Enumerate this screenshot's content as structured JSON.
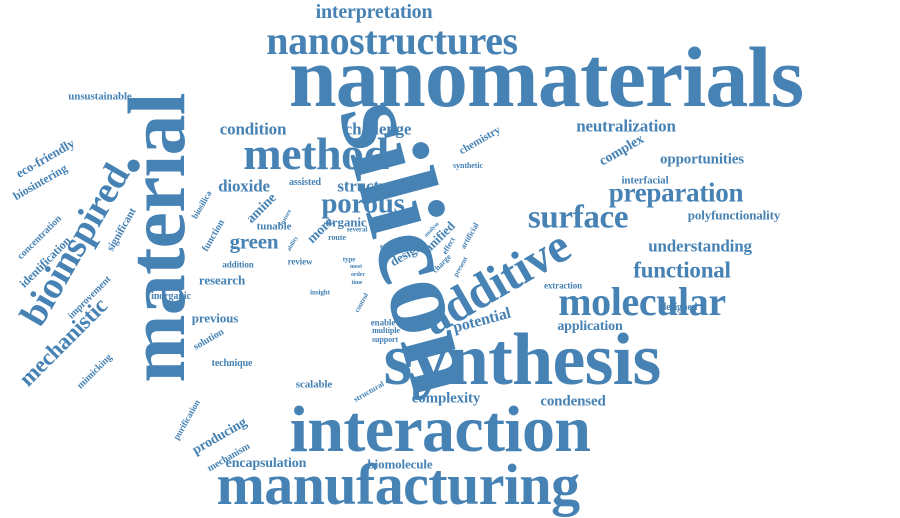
{
  "color": "#4682b4",
  "words": {
    "nanomaterials": "nanomaterials",
    "silicon": "silicon",
    "material": "material",
    "synthesis": "synthesis",
    "interaction": "interaction",
    "manufacturing": "manufacturing",
    "nanostructures": "nanostructures",
    "method": "method",
    "bioinspired": "bioinspired",
    "additive": "additive",
    "molecular": "molecular",
    "preparation": "preparation",
    "surface": "surface",
    "porous": "porous",
    "functional": "functional",
    "interpretation": "interpretation",
    "mechanistic": "mechanistic",
    "condition": "condition",
    "challenge": "challenge",
    "neutralization": "neutralization",
    "opportunities": "opportunities",
    "dioxide": "dioxide",
    "structure": "structure",
    "green": "green",
    "understanding": "understanding",
    "complexity": "complexity",
    "condensed": "condensed",
    "encapsulation": "encapsulation",
    "biomolecule": "biomolecule",
    "application": "application",
    "potential": "potential",
    "polyfunctionality": "polyfunctionality",
    "research": "research",
    "previous": "previous",
    "producing": "producing",
    "unsustainable": "unsustainable",
    "eco_friendly": "eco-friendly",
    "biosintering": "biosintering",
    "concentration": "concentration",
    "identification": "identification",
    "improvement": "improvement",
    "significant": "significant",
    "mimicking": "mimicking",
    "purification": "purification",
    "mechanism": "mechanism",
    "technique": "technique",
    "solution": "solution",
    "inorganic": "inorganic",
    "addition": "addition",
    "function": "function",
    "biosilica": "biosilica",
    "tunable": "tunable",
    "assisted": "assisted",
    "amine": "amine",
    "organic": "organic",
    "more": "more",
    "route": "route",
    "several": "several",
    "review": "review",
    "insight": "insight",
    "type": "type",
    "study": "study",
    "design": "design",
    "unified": "unified",
    "chemistry": "chemistry",
    "synthetic": "synthetic",
    "complex": "complex",
    "interfacial": "interfacial",
    "designed": "designed",
    "extraction": "extraction",
    "artificial": "artificial",
    "enable": "enable",
    "silicate": "silicate",
    "multiple": "multiple",
    "support": "support",
    "scalable": "scalable",
    "structural": "structural",
    "control": "control",
    "charge": "charge",
    "effect": "effect",
    "present": "present",
    "analyse": "analyse",
    "feature": "feature",
    "ability": "ability",
    "most": "most",
    "order": "order",
    "time": "time"
  }
}
